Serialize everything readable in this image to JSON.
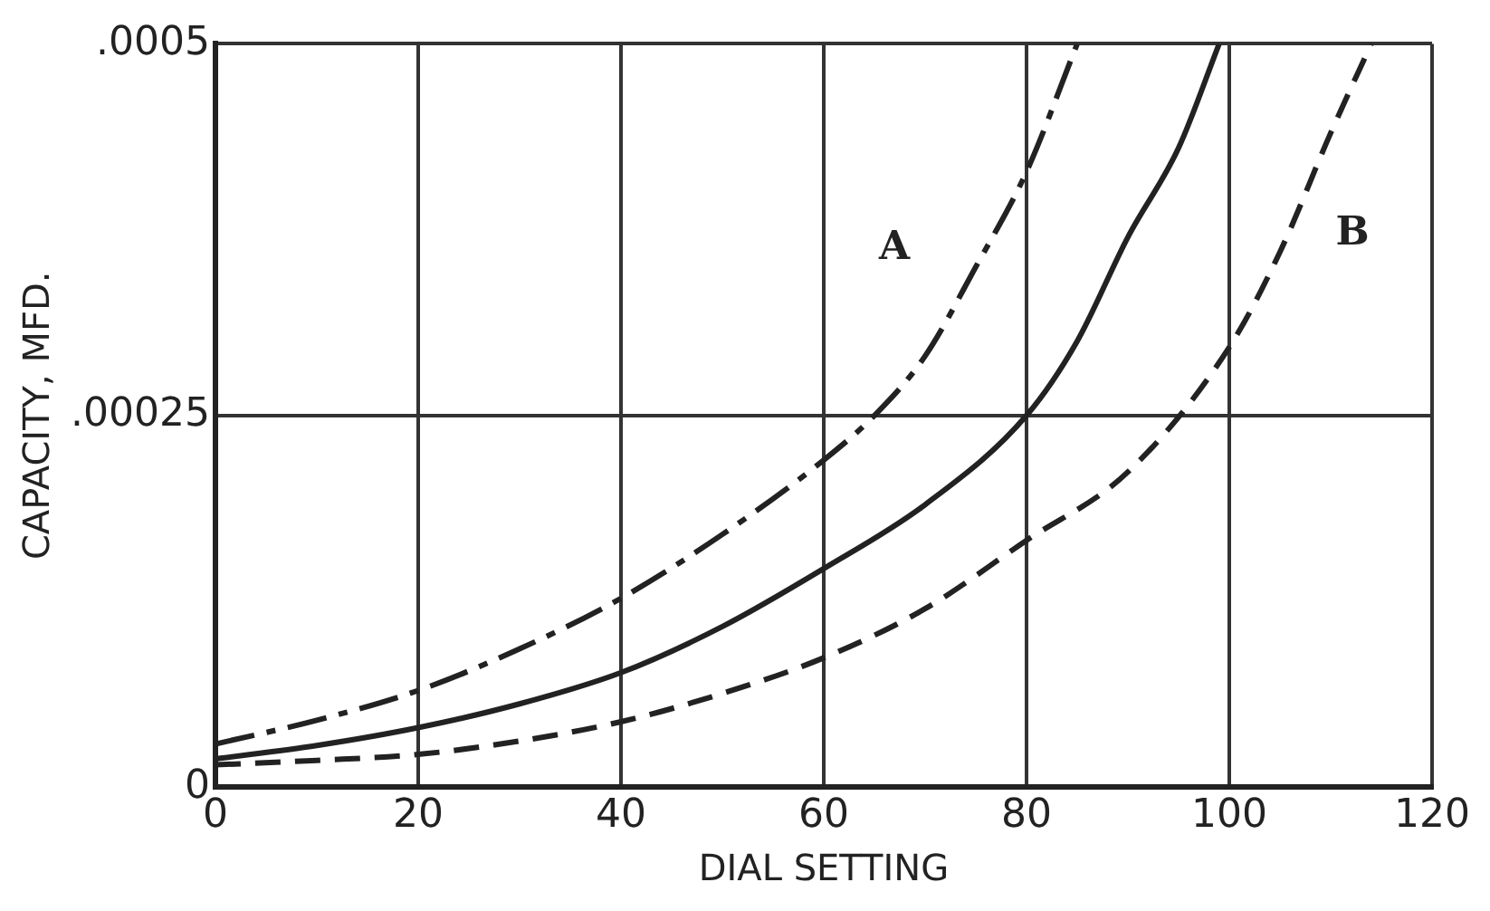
{
  "chart_data": {
    "type": "line",
    "xlabel": "DIAL SETTING",
    "ylabel": "CAPACITY, MFD.",
    "xlim": [
      0,
      120
    ],
    "xticks": [
      0,
      20,
      40,
      60,
      80,
      100,
      120
    ],
    "ylim": [
      0,
      0.0005
    ],
    "yticks": [
      0,
      {
        "value": 0.00025,
        "label": ".00025"
      },
      {
        "value": 0.0005,
        "label": ".0005"
      }
    ],
    "grid": true,
    "legend": false,
    "marker": "none",
    "series": [
      {
        "name": "A",
        "color": "#222222",
        "line_style": "dashdot",
        "x": [
          0,
          10,
          20,
          30,
          40,
          50,
          60,
          65,
          70,
          75,
          80,
          85
        ],
        "values": [
          2.9e-05,
          4.5e-05,
          6.5e-05,
          9.3e-05,
          0.000127,
          0.00017,
          0.00022,
          0.00025,
          0.00029,
          0.00035,
          0.000414,
          0.0005
        ]
      },
      {
        "color": "#222222",
        "line_style": "solid",
        "x": [
          0,
          10,
          20,
          30,
          40,
          50,
          60,
          70,
          80,
          85,
          90,
          95,
          99
        ],
        "values": [
          1.9e-05,
          2.8e-05,
          4e-05,
          5.6e-05,
          7.7e-05,
          0.000108,
          0.000147,
          0.00019,
          0.00025,
          0.0003,
          0.00037,
          0.00043,
          0.0005
        ]
      },
      {
        "name": "B",
        "color": "#222222",
        "line_style": "dashed",
        "x": [
          0,
          10,
          20,
          30,
          40,
          50,
          60,
          70,
          80,
          90,
          100,
          105,
          110,
          114
        ],
        "values": [
          1.5e-05,
          1.8e-05,
          2.2e-05,
          3.1e-05,
          4.4e-05,
          6.3e-05,
          8.7e-05,
          0.00012,
          0.000166,
          0.000212,
          0.000296,
          0.00036,
          0.00044,
          0.0005
        ]
      }
    ]
  }
}
